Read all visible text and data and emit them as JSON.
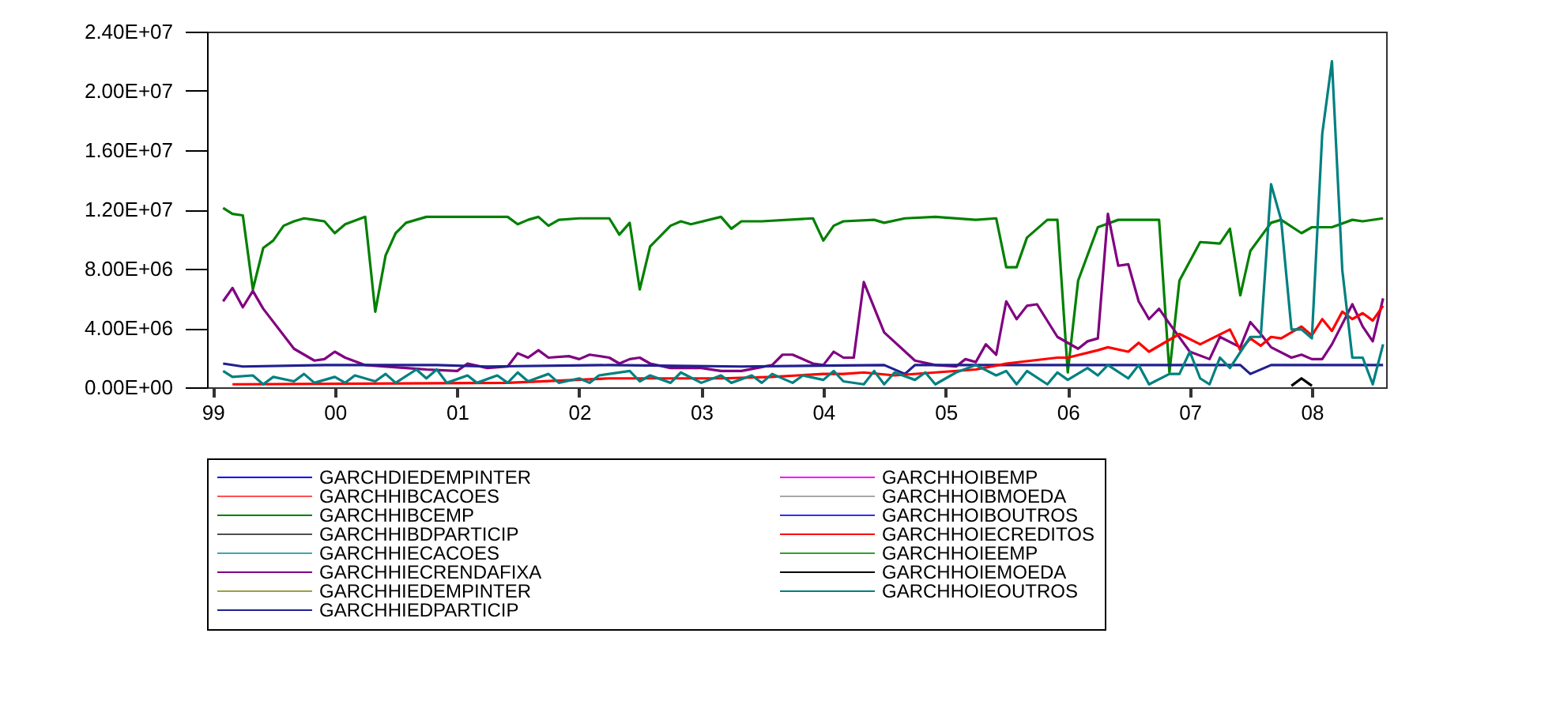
{
  "chart_data": {
    "type": "line",
    "xlim": [
      "1998-12-15",
      "2008-08-10"
    ],
    "xticks": [
      {
        "value": "1999-01",
        "label": "99"
      },
      {
        "value": "2000-01",
        "label": "00"
      },
      {
        "value": "2001-01",
        "label": "01"
      },
      {
        "value": "2002-01",
        "label": "02"
      },
      {
        "value": "2003-01",
        "label": "03"
      },
      {
        "value": "2004-01",
        "label": "04"
      },
      {
        "value": "2005-01",
        "label": "05"
      },
      {
        "value": "2006-01",
        "label": "06"
      },
      {
        "value": "2007-01",
        "label": "07"
      },
      {
        "value": "2008-01",
        "label": "08"
      }
    ],
    "ylim": [
      0,
      24000000
    ],
    "yticks": [
      {
        "value": 0,
        "label": "0.00E+00"
      },
      {
        "value": 4000000,
        "label": "4.00E+06"
      },
      {
        "value": 8000000,
        "label": "8.00E+06"
      },
      {
        "value": 12000000,
        "label": "1.20E+07"
      },
      {
        "value": 16000000,
        "label": "1.60E+07"
      },
      {
        "value": 20000000,
        "label": "2.00E+07"
      },
      {
        "value": 24000000,
        "label": "2.40E+07"
      }
    ],
    "legend": "bottom",
    "series": [
      {
        "name": "GARCHDIEDEMPINTER",
        "color": "#0000ff"
      },
      {
        "name": "GARCHHIBCACOES",
        "color": "#ff5050"
      },
      {
        "name": "GARCHHIBCEMP",
        "color": "#008000",
        "x": [
          "1999-02",
          "1999-03",
          "1999-04",
          "1999-05",
          "1999-06",
          "1999-07",
          "1999-08",
          "1999-09",
          "1999-10",
          "1999-11",
          "1999-12",
          "2000-01",
          "2000-02",
          "2000-04",
          "2000-05",
          "2000-06",
          "2000-07",
          "2000-08",
          "2000-10",
          "2001-06",
          "2001-07",
          "2001-08",
          "2001-09",
          "2001-10",
          "2001-11",
          "2002-01",
          "2002-04",
          "2002-05",
          "2002-06",
          "2002-07",
          "2002-08",
          "2002-10",
          "2002-11",
          "2002-12",
          "2003-03",
          "2003-04",
          "2003-05",
          "2003-07",
          "2003-12",
          "2004-01",
          "2004-02",
          "2004-03",
          "2004-06",
          "2004-07",
          "2004-09",
          "2004-12",
          "2005-04",
          "2005-06",
          "2005-07",
          "2005-08",
          "2005-09",
          "2005-11",
          "2005-12",
          "2006-01",
          "2006-02",
          "2006-04",
          "2006-06",
          "2006-10",
          "2006-11",
          "2006-12",
          "2007-02",
          "2007-04",
          "2007-05",
          "2007-06",
          "2007-07",
          "2007-09",
          "2007-10",
          "2007-12",
          "2008-01",
          "2008-03",
          "2008-05",
          "2008-06",
          "2008-08"
        ],
        "values": [
          12100000,
          11700000,
          11600000,
          6600000,
          9400000,
          9900000,
          10900000,
          11200000,
          11400000,
          11300000,
          11200000,
          10400000,
          11000000,
          11500000,
          5100000,
          8900000,
          10400000,
          11100000,
          11500000,
          11500000,
          11000000,
          11300000,
          11500000,
          10900000,
          11300000,
          11400000,
          11400000,
          10300000,
          11100000,
          6600000,
          9500000,
          10900000,
          11200000,
          11000000,
          11500000,
          10700000,
          11200000,
          11200000,
          11400000,
          9900000,
          10900000,
          11200000,
          11300000,
          11100000,
          11400000,
          11500000,
          11300000,
          11400000,
          8100000,
          8100000,
          10100000,
          11300000,
          11300000,
          1000000,
          7200000,
          10800000,
          11300000,
          11300000,
          1000000,
          7200000,
          9800000,
          9700000,
          10700000,
          6200000,
          9200000,
          11100000,
          11300000,
          10400000,
          10800000,
          10800000,
          11300000,
          11200000,
          11400000
        ]
      },
      {
        "name": "GARCHHIBDPARTICIP",
        "color": "#505050"
      },
      {
        "name": "GARCHHIECACOES",
        "color": "#40a8a8"
      },
      {
        "name": "GARCHHIECRENDAFIXA",
        "color": "#800080",
        "x": [
          "1999-02",
          "1999-03",
          "1999-04",
          "1999-05",
          "1999-06",
          "1999-09",
          "1999-11",
          "1999-12",
          "2000-01",
          "2000-02",
          "2000-04",
          "2000-08",
          "2000-10",
          "2001-01",
          "2001-02",
          "2001-04",
          "2001-06",
          "2001-07",
          "2001-08",
          "2001-09",
          "2001-10",
          "2001-12",
          "2002-01",
          "2002-02",
          "2002-04",
          "2002-05",
          "2002-06",
          "2002-07",
          "2002-08",
          "2002-10",
          "2003-01",
          "2003-03",
          "2003-05",
          "2003-08",
          "2003-09",
          "2003-10",
          "2003-12",
          "2004-01",
          "2004-02",
          "2004-03",
          "2004-04",
          "2004-05",
          "2004-07",
          "2004-10",
          "2004-12",
          "2005-02",
          "2005-03",
          "2005-04",
          "2005-05",
          "2005-06",
          "2005-07",
          "2005-08",
          "2005-09",
          "2005-10",
          "2005-12",
          "2006-02",
          "2006-03",
          "2006-04",
          "2006-05",
          "2006-06",
          "2006-07",
          "2006-08",
          "2006-09",
          "2006-10",
          "2006-11",
          "2007-01",
          "2007-03",
          "2007-04",
          "2007-06",
          "2007-07",
          "2007-08",
          "2007-09",
          "2007-11",
          "2007-12",
          "2008-01",
          "2008-02",
          "2008-03",
          "2008-05",
          "2008-06",
          "2008-07",
          "2008-08"
        ],
        "values": [
          5800000,
          6700000,
          5400000,
          6500000,
          5300000,
          2600000,
          1800000,
          1900000,
          2400000,
          2000000,
          1500000,
          1300000,
          1200000,
          1100000,
          1600000,
          1300000,
          1400000,
          2300000,
          2000000,
          2500000,
          2000000,
          2100000,
          1900000,
          2200000,
          2000000,
          1600000,
          1900000,
          2000000,
          1600000,
          1300000,
          1300000,
          1100000,
          1100000,
          1500000,
          2200000,
          2200000,
          1600000,
          1500000,
          2400000,
          2000000,
          2000000,
          7100000,
          3700000,
          1800000,
          1500000,
          1400000,
          1900000,
          1700000,
          2900000,
          2200000,
          5800000,
          4600000,
          5500000,
          5600000,
          3400000,
          2600000,
          3100000,
          3300000,
          11700000,
          8200000,
          8300000,
          5800000,
          4600000,
          5300000,
          4300000,
          2400000,
          1900000,
          3400000,
          2700000,
          4400000,
          3600000,
          2700000,
          2000000,
          2200000,
          1900000,
          1900000,
          2900000,
          5600000,
          4100000,
          3100000,
          6000000
        ]
      },
      {
        "name": "GARCHHIEDEMPINTER",
        "color": "#a0a040"
      },
      {
        "name": "GARCHHIEDPARTICIP",
        "color": "#202090",
        "x": [
          "1999-02",
          "1999-04",
          "1999-12",
          "2000-11",
          "2001-04",
          "2002-04",
          "2003-05",
          "2004-07",
          "2004-09",
          "2004-10",
          "2007-06",
          "2007-07",
          "2007-09",
          "2008-08"
        ],
        "values": [
          1600000,
          1400000,
          1500000,
          1500000,
          1400000,
          1500000,
          1400000,
          1500000,
          900000,
          1500000,
          1500000,
          900000,
          1500000,
          1500000
        ]
      },
      {
        "name": "GARCHHOIBEMP",
        "color": "#ff00ff"
      },
      {
        "name": "GARCHHOIBMOEDA",
        "color": "#a8a8a8"
      },
      {
        "name": "GARCHHOIBOUTROS",
        "color": "#3030ff"
      },
      {
        "name": "GARCHHOIECREDITOS",
        "color": "#ff0000",
        "x": [
          "1999-03",
          "2001-06",
          "2002-04",
          "2003-03",
          "2003-08",
          "2004-01",
          "2004-03",
          "2004-05",
          "2004-08",
          "2004-12",
          "2005-04",
          "2005-07",
          "2005-12",
          "2006-01",
          "2006-04",
          "2006-05",
          "2006-07",
          "2006-08",
          "2006-09",
          "2006-12",
          "2007-02",
          "2007-05",
          "2007-06",
          "2007-07",
          "2007-08",
          "2007-09",
          "2007-10",
          "2007-12",
          "2008-01",
          "2008-02",
          "2008-03",
          "2008-04",
          "2008-05",
          "2008-06",
          "2008-07",
          "2008-08"
        ],
        "values": [
          200000,
          300000,
          600000,
          600000,
          700000,
          900000,
          900000,
          1000000,
          800000,
          1000000,
          1200000,
          1600000,
          2000000,
          2000000,
          2500000,
          2700000,
          2400000,
          3000000,
          2400000,
          3600000,
          2900000,
          3900000,
          2500000,
          3300000,
          2800000,
          3400000,
          3300000,
          4100000,
          3500000,
          4600000,
          3800000,
          5100000,
          4600000,
          5000000,
          4500000,
          5500000
        ]
      },
      {
        "name": "GARCHHOIEEMP",
        "color": "#30a030"
      },
      {
        "name": "GARCHHOIEMOEDA",
        "color": "#000000",
        "x": [
          "2007-11",
          "2007-12",
          "2008-01"
        ],
        "values": [
          100000,
          600000,
          100000
        ]
      },
      {
        "name": "GARCHHOIEOUTROS",
        "color": "#008080",
        "x": [
          "1999-02",
          "1999-03",
          "1999-05",
          "1999-06",
          "1999-07",
          "1999-09",
          "1999-10",
          "1999-11",
          "2000-01",
          "2000-02",
          "2000-03",
          "2000-05",
          "2000-06",
          "2000-07",
          "2000-09",
          "2000-10",
          "2000-11",
          "2000-12",
          "2001-02",
          "2001-03",
          "2001-05",
          "2001-06",
          "2001-07",
          "2001-08",
          "2001-10",
          "2001-11",
          "2002-01",
          "2002-02",
          "2002-03",
          "2002-06",
          "2002-07",
          "2002-08",
          "2002-10",
          "2002-11",
          "2003-01",
          "2003-03",
          "2003-04",
          "2003-06",
          "2003-07",
          "2003-08",
          "2003-10",
          "2003-11",
          "2004-01",
          "2004-02",
          "2004-03",
          "2004-05",
          "2004-06",
          "2004-07",
          "2004-08",
          "2004-10",
          "2004-11",
          "2004-12",
          "2005-02",
          "2005-04",
          "2005-06",
          "2005-07",
          "2005-08",
          "2005-09",
          "2005-11",
          "2005-12",
          "2006-01",
          "2006-03",
          "2006-04",
          "2006-05",
          "2006-07",
          "2006-08",
          "2006-09",
          "2006-11",
          "2006-12",
          "2007-01",
          "2007-02",
          "2007-03",
          "2007-04",
          "2007-05",
          "2007-07",
          "2007-08",
          "2007-09",
          "2007-10",
          "2007-11",
          "2007-12",
          "2008-01",
          "2008-02",
          "2008-03",
          "2008-04",
          "2008-05",
          "2008-06",
          "2008-07",
          "2008-08"
        ],
        "values": [
          1100000,
          700000,
          800000,
          200000,
          700000,
          400000,
          900000,
          300000,
          700000,
          300000,
          800000,
          400000,
          900000,
          300000,
          1200000,
          600000,
          1200000,
          300000,
          800000,
          300000,
          800000,
          300000,
          1000000,
          400000,
          900000,
          300000,
          600000,
          300000,
          800000,
          1100000,
          400000,
          800000,
          300000,
          1000000,
          300000,
          800000,
          300000,
          800000,
          300000,
          900000,
          300000,
          800000,
          500000,
          1100000,
          400000,
          200000,
          1100000,
          200000,
          1000000,
          500000,
          1000000,
          200000,
          1000000,
          1500000,
          800000,
          1100000,
          200000,
          1100000,
          200000,
          1000000,
          500000,
          1300000,
          800000,
          1500000,
          600000,
          1500000,
          200000,
          900000,
          900000,
          2400000,
          600000,
          200000,
          2000000,
          1300000,
          3400000,
          3400000,
          13700000,
          11300000,
          3900000,
          3900000,
          3300000,
          17100000,
          22000000,
          7900000,
          2000000,
          2000000,
          200000,
          2900000
        ]
      }
    ]
  }
}
